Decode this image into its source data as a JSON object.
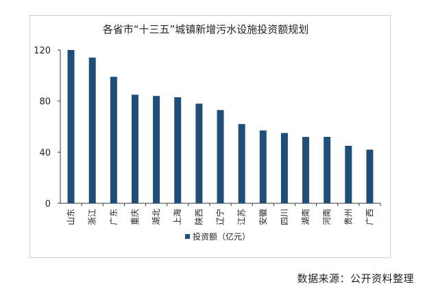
{
  "chart_data": {
    "type": "bar",
    "title": "各省市“十三五”城镇新增污水设施投资额规划",
    "categories": [
      "山东",
      "浙江",
      "广东",
      "重庆",
      "湖北",
      "上海",
      "陕西",
      "辽宁",
      "江苏",
      "安徽",
      "四川",
      "湖南",
      "河南",
      "贵州",
      "广西"
    ],
    "series": [
      {
        "name": "投资额（亿元）",
        "values": [
          120,
          114,
          99,
          85,
          84,
          83,
          78,
          73,
          62,
          57,
          55,
          52,
          52,
          45,
          42
        ]
      }
    ],
    "xlabel": "",
    "ylabel": "",
    "ylim": [
      0,
      120
    ],
    "yticks": [
      0,
      40,
      80,
      120
    ],
    "grid": false,
    "legend_position": "bottom"
  },
  "colors": {
    "bar": "#1f4e79",
    "axis": "#333333"
  },
  "source_text": "数据来源：公开资料整理"
}
